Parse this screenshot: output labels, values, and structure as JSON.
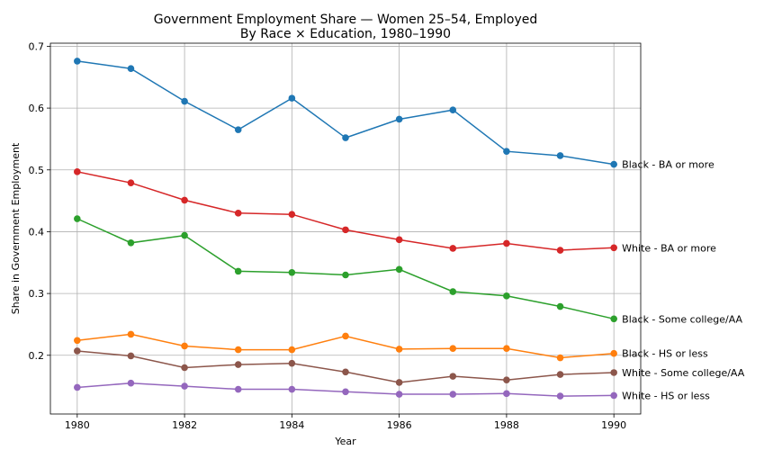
{
  "chart_data": {
    "type": "line",
    "title": "Government Employment Share — Women 25–54, Employed",
    "subtitle": "By Race × Education, 1980–1990",
    "xlabel": "Year",
    "ylabel": "Share in Government Employment",
    "xlim": [
      1979.5,
      1990.5
    ],
    "ylim": [
      0.105,
      0.705
    ],
    "x_ticks": [
      1980,
      1982,
      1984,
      1986,
      1988,
      1990
    ],
    "y_ticks": [
      0.2,
      0.3,
      0.4,
      0.5,
      0.6,
      0.7
    ],
    "y_tick_labels": [
      "0.2",
      "0.3",
      "0.4",
      "0.5",
      "0.6",
      "0.7"
    ],
    "grid": true,
    "legend": "end-of-line labels",
    "x": [
      1980,
      1981,
      1982,
      1983,
      1984,
      1985,
      1986,
      1987,
      1988,
      1989,
      1990
    ],
    "series": [
      {
        "name": "Black - BA or more",
        "color": "#1f77b4",
        "values": [
          0.676,
          0.664,
          0.611,
          0.565,
          0.616,
          0.552,
          0.582,
          0.597,
          0.53,
          0.523,
          0.509
        ]
      },
      {
        "name": "White - BA or more",
        "color": "#d62728",
        "values": [
          0.497,
          0.479,
          0.451,
          0.43,
          0.428,
          0.403,
          0.387,
          0.373,
          0.381,
          0.37,
          0.374
        ]
      },
      {
        "name": "Black - Some college/AA",
        "color": "#2ca02c",
        "values": [
          0.421,
          0.382,
          0.394,
          0.336,
          0.334,
          0.33,
          0.339,
          0.303,
          0.296,
          0.279,
          0.259
        ]
      },
      {
        "name": "Black - HS or less",
        "color": "#ff7f0e",
        "values": [
          0.224,
          0.234,
          0.215,
          0.209,
          0.209,
          0.231,
          0.21,
          0.211,
          0.211,
          0.196,
          0.203
        ]
      },
      {
        "name": "White - Some college/AA",
        "color": "#8c564b",
        "values": [
          0.207,
          0.199,
          0.18,
          0.185,
          0.187,
          0.173,
          0.156,
          0.166,
          0.16,
          0.169,
          0.172
        ]
      },
      {
        "name": "White - HS or less",
        "color": "#9467bd",
        "values": [
          0.148,
          0.155,
          0.15,
          0.145,
          0.145,
          0.141,
          0.137,
          0.137,
          0.138,
          0.134,
          0.135
        ]
      }
    ]
  }
}
